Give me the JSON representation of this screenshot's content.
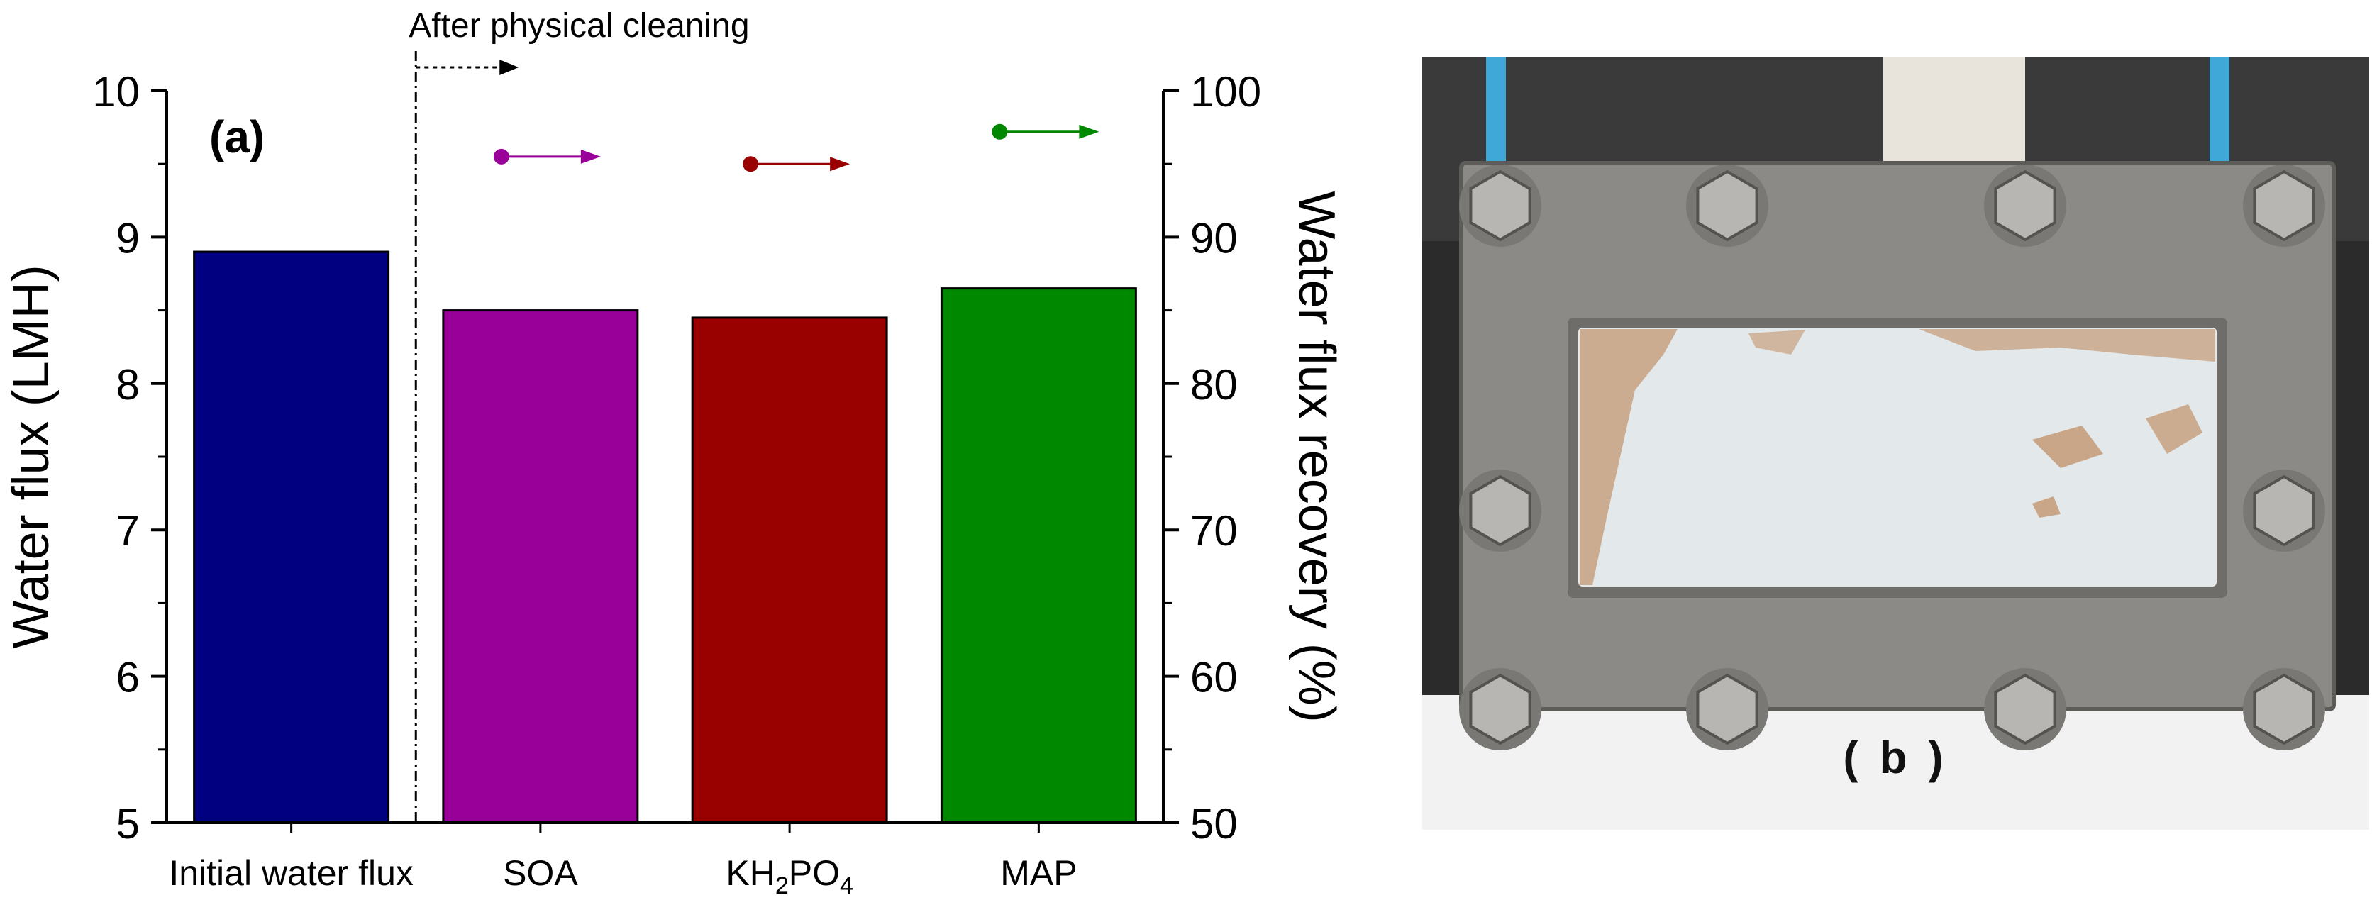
{
  "chart_data": {
    "type": "bar",
    "panel_label": "(a)",
    "categories": [
      "Initial water flux",
      "SOA",
      "KH2PO4",
      "MAP"
    ],
    "category_display": [
      {
        "main": "Initial water flux"
      },
      {
        "main": "SOA"
      },
      {
        "pre": "KH",
        "sub1": "2",
        "mid": "PO",
        "sub2": "4"
      },
      {
        "main": "MAP"
      }
    ],
    "values": [
      8.9,
      8.5,
      8.45,
      8.65
    ],
    "colors": [
      "#000080",
      "#990099",
      "#990000",
      "#008800"
    ],
    "ylabel": "Water flux (LMH)",
    "ylim": [
      5,
      10
    ],
    "yticks": [
      5,
      6,
      7,
      8,
      9,
      10
    ],
    "y2label": "Water flux recovery (%)",
    "y2lim": [
      50,
      100
    ],
    "y2ticks": [
      50,
      60,
      70,
      80,
      90,
      100
    ],
    "recovery_series": [
      {
        "category": "SOA",
        "value": 95.5,
        "color": "#990099"
      },
      {
        "category": "KH2PO4",
        "value": 95.0,
        "color": "#990000"
      },
      {
        "category": "MAP",
        "value": 97.2,
        "color": "#008800"
      }
    ],
    "annotation": "After physical cleaning",
    "grid": false
  },
  "photo": {
    "label": "( b )",
    "bolts": 10,
    "colors": {
      "frame": "#8c8a86",
      "frame_dark": "#5e5c58",
      "membrane": "#e3e8ea",
      "fouling": "#b87a45",
      "background": "#2a2a2a"
    }
  }
}
